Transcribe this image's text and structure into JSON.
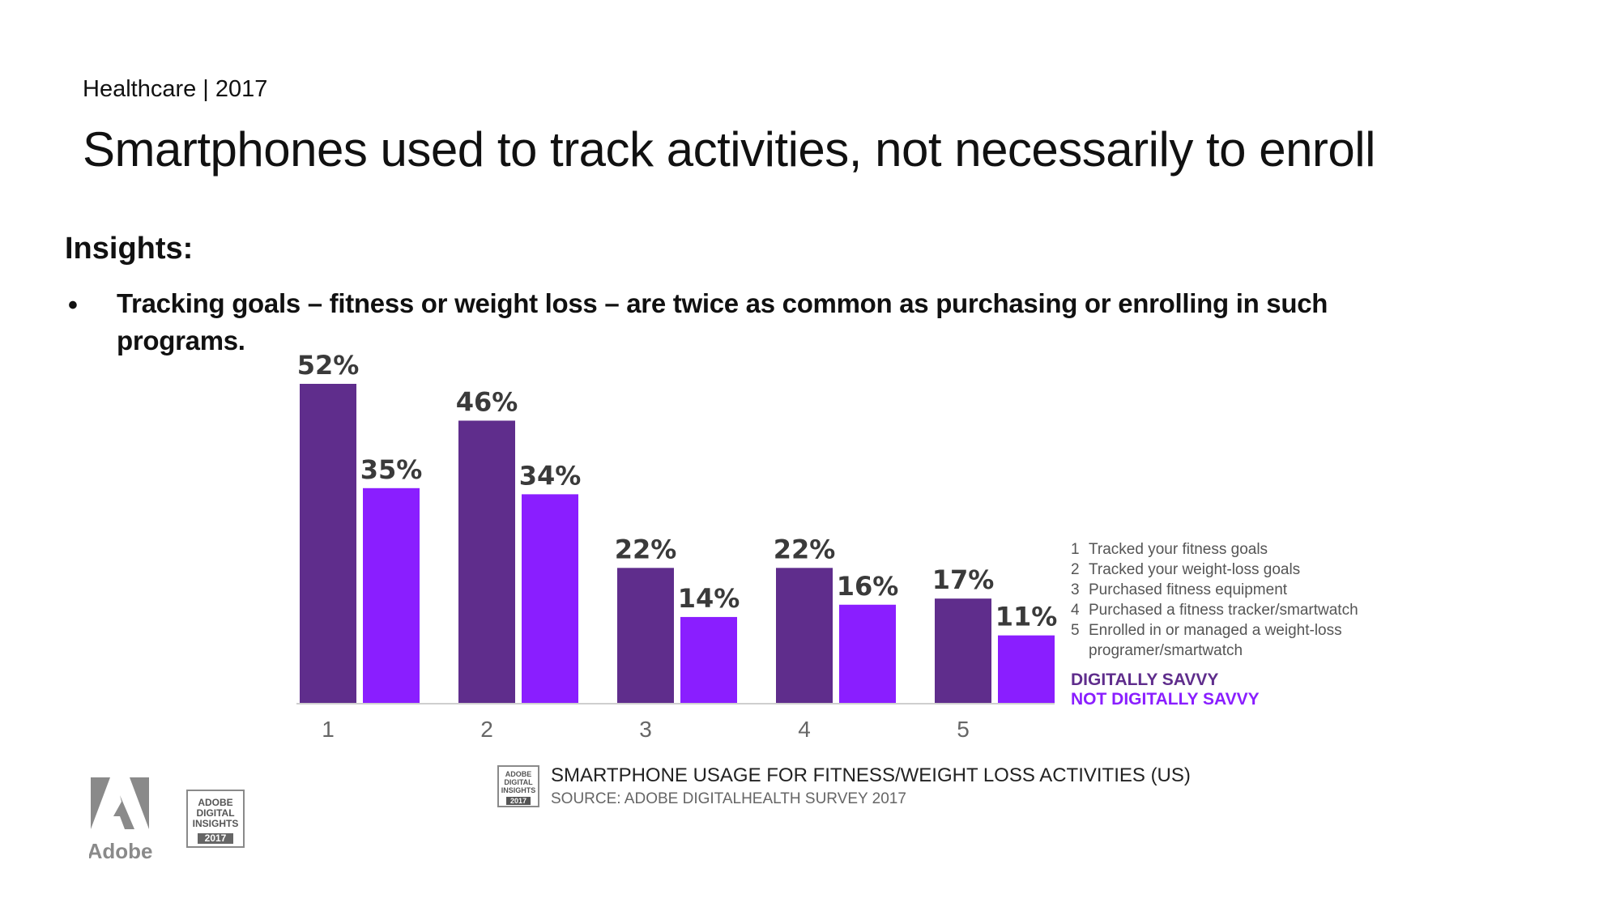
{
  "header": {
    "kicker": "Healthcare | 2017",
    "title": "Smartphones used to track activities, not necessarily to enroll"
  },
  "insights": {
    "heading": "Insights:",
    "bullet_glyph": "•",
    "bullet_text": "Tracking goals – fitness or weight loss – are twice as common as purchasing or enrolling in such programs."
  },
  "chart_data": {
    "type": "bar",
    "categories": [
      "1",
      "2",
      "3",
      "4",
      "5"
    ],
    "series": [
      {
        "name": "DIGITALLY SAVVY",
        "values": [
          52,
          46,
          22,
          22,
          17
        ]
      },
      {
        "name": "NOT DIGITALLY SAVVY",
        "values": [
          35,
          34,
          14,
          16,
          11
        ]
      }
    ],
    "data_labels": [
      [
        "52%",
        "46%",
        "22%",
        "22%",
        "17%"
      ],
      [
        "35%",
        "34%",
        "14%",
        "16%",
        "11%"
      ]
    ],
    "title": "SMARTPHONE USAGE FOR FITNESS/WEIGHT LOSS ACTIVITIES (US)",
    "source": "SOURCE: ADOBE DIGITALHEALTH SURVEY 2017",
    "xlabel": "",
    "ylabel": "",
    "ylim": [
      0,
      55
    ],
    "grid": false,
    "legend_position": "right",
    "category_legend": [
      {
        "num": "1",
        "text": "Tracked your fitness goals"
      },
      {
        "num": "2",
        "text": "Tracked your weight-loss goals"
      },
      {
        "num": "3",
        "text": "Purchased fitness equipment"
      },
      {
        "num": "4",
        "text": "Purchased a fitness tracker/smartwatch"
      },
      {
        "num": "5",
        "text": "Enrolled in or managed a weight-loss programer/smartwatch"
      }
    ]
  },
  "colors": {
    "series_1": "#5f2d8c",
    "series_2": "#8a1eff",
    "axis": "#cfcfcf",
    "logo_gray": "#8a8a8a"
  },
  "branding": {
    "adobe_logo_text": "Adobe",
    "badge_lines": [
      "ADOBE",
      "DIGITAL",
      "INSIGHTS"
    ],
    "badge_year": "2017"
  }
}
